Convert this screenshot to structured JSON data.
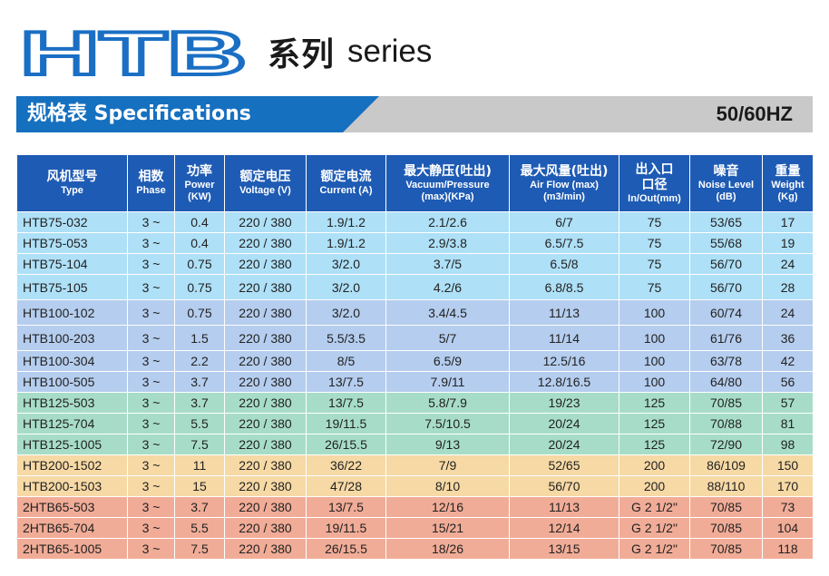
{
  "header": {
    "logo_text": "HTB",
    "series_cn": "系列",
    "series_en": "series"
  },
  "banner": {
    "title": "规格表 Specifications",
    "frequency": "50/60HZ"
  },
  "colors": {
    "logo_blue": "#1a6fc4",
    "banner_blue": "#1670c0",
    "banner_gray": "#c9c9c9",
    "header_blue": "#1e5bb4",
    "group_75": "#aee0f7",
    "group_100": "#b5cdee",
    "group_125": "#a7ddc8",
    "group_200": "#f7d9a5",
    "group_2htb": "#f1ac97"
  },
  "table": {
    "columns": [
      {
        "cn": "风机型号",
        "en": "Type"
      },
      {
        "cn": "相数",
        "en": "Phase"
      },
      {
        "cn": "功率",
        "en": "Power",
        "en2": "(KW)"
      },
      {
        "cn": "额定电压",
        "en": "Voltage (V)"
      },
      {
        "cn": "额定电流",
        "en": "Current (A)"
      },
      {
        "cn": "最大静压(吐出)",
        "en": "Vacuum/Pressure",
        "en2": "(max)(KPa)"
      },
      {
        "cn": "最大风量(吐出)",
        "en": "Air Flow (max)",
        "en2": "(m3/min)"
      },
      {
        "cn": "出入口",
        "cn2": "口径",
        "en": "In/Out(mm)"
      },
      {
        "cn": "噪音",
        "en": "Noise Level",
        "en2": "(dB)"
      },
      {
        "cn": "重量",
        "en": "Weight",
        "en2": "(Kg)"
      }
    ],
    "rows": [
      [
        "HTB75-032",
        "3 ~",
        "0.4",
        "220 / 380",
        "1.9/1.2",
        "2.1/2.6",
        "6/7",
        "75",
        "53/65",
        "17"
      ],
      [
        "HTB75-053",
        "3 ~",
        "0.4",
        "220 / 380",
        "1.9/1.2",
        "2.9/3.8",
        "6.5/7.5",
        "75",
        "55/68",
        "19"
      ],
      [
        "HTB75-104",
        "3 ~",
        "0.75",
        "220 / 380",
        "3/2.0",
        "3.7/5",
        "6.5/8",
        "75",
        "56/70",
        "24"
      ],
      [
        "HTB75-105",
        "3 ~",
        "0.75",
        "220 / 380",
        "3/2.0",
        "4.2/6",
        "6.8/8.5",
        "75",
        "56/70",
        "28"
      ],
      [
        "HTB100-102",
        "3 ~",
        "0.75",
        "220 / 380",
        "3/2.0",
        "3.4/4.5",
        "11/13",
        "100",
        "60/74",
        "24"
      ],
      [
        "HTB100-203",
        "3 ~",
        "1.5",
        "220 / 380",
        "5.5/3.5",
        "5/7",
        "11/14",
        "100",
        "61/76",
        "36"
      ],
      [
        "HTB100-304",
        "3 ~",
        "2.2",
        "220 / 380",
        "8/5",
        "6.5/9",
        "12.5/16",
        "100",
        "63/78",
        "42"
      ],
      [
        "HTB100-505",
        "3 ~",
        "3.7",
        "220 / 380",
        "13/7.5",
        "7.9/11",
        "12.8/16.5",
        "100",
        "64/80",
        "56"
      ],
      [
        "HTB125-503",
        "3 ~",
        "3.7",
        "220 / 380",
        "13/7.5",
        "5.8/7.9",
        "19/23",
        "125",
        "70/85",
        "57"
      ],
      [
        "HTB125-704",
        "3 ~",
        "5.5",
        "220 / 380",
        "19/11.5",
        "7.5/10.5",
        "20/24",
        "125",
        "70/88",
        "81"
      ],
      [
        "HTB125-1005",
        "3 ~",
        "7.5",
        "220 / 380",
        "26/15.5",
        "9/13",
        "20/24",
        "125",
        "72/90",
        "98"
      ],
      [
        "HTB200-1502",
        "3 ~",
        "11",
        "220 / 380",
        "36/22",
        "7/9",
        "52/65",
        "200",
        "86/109",
        "150"
      ],
      [
        "HTB200-1503",
        "3 ~",
        "15",
        "220 / 380",
        "47/28",
        "8/10",
        "56/70",
        "200",
        "88/110",
        "170"
      ],
      [
        "2HTB65-503",
        "3 ~",
        "3.7",
        "220 / 380",
        "13/7.5",
        "12/16",
        "11/13",
        "G 2 1/2\"",
        "70/85",
        "73"
      ],
      [
        "2HTB65-704",
        "3 ~",
        "5.5",
        "220 / 380",
        "19/11.5",
        "15/21",
        "12/14",
        "G 2 1/2\"",
        "70/85",
        "104"
      ],
      [
        "2HTB65-1005",
        "3 ~",
        "7.5",
        "220 / 380",
        "26/15.5",
        "18/26",
        "13/15",
        "G 2 1/2\"",
        "70/85",
        "118"
      ]
    ]
  }
}
